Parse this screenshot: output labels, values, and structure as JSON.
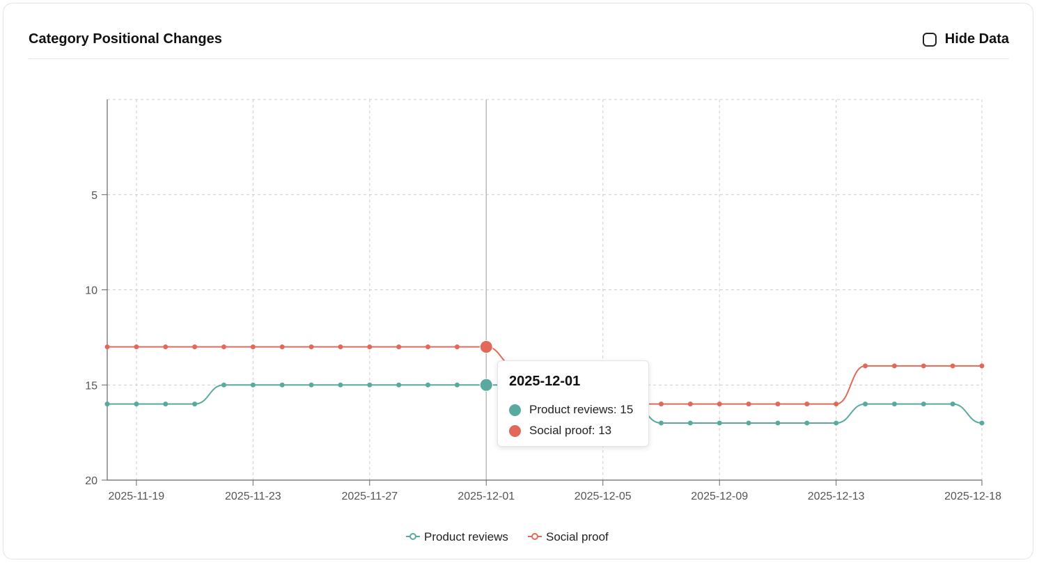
{
  "card": {
    "title": "Category Positional Changes",
    "hide_label": "Hide Data",
    "hide_checked": false
  },
  "colors": {
    "product_reviews": "#5aa99e",
    "social_proof": "#e2695a",
    "grid": "#cccccc",
    "axis": "#666666"
  },
  "tooltip": {
    "date": "2025-12-01",
    "rows": [
      {
        "text": "Product reviews: 15",
        "series": "product_reviews"
      },
      {
        "text": "Social proof: 13",
        "series": "social_proof"
      }
    ]
  },
  "chart_data": {
    "type": "line",
    "title": "",
    "xlabel": "",
    "ylabel": "",
    "y_inverted": true,
    "ylim": [
      0,
      20
    ],
    "yticks": [
      5,
      10,
      15,
      20
    ],
    "x": [
      "2025-11-18",
      "2025-11-19",
      "2025-11-20",
      "2025-11-21",
      "2025-11-22",
      "2025-11-23",
      "2025-11-24",
      "2025-11-25",
      "2025-11-26",
      "2025-11-27",
      "2025-11-28",
      "2025-11-29",
      "2025-11-30",
      "2025-12-01",
      "2025-12-02",
      "2025-12-03",
      "2025-12-04",
      "2025-12-05",
      "2025-12-06",
      "2025-12-07",
      "2025-12-08",
      "2025-12-09",
      "2025-12-10",
      "2025-12-11",
      "2025-12-12",
      "2025-12-13",
      "2025-12-14",
      "2025-12-15",
      "2025-12-16",
      "2025-12-17",
      "2025-12-18"
    ],
    "xtick_labels": [
      "2025-11-19",
      "2025-11-23",
      "2025-11-27",
      "2025-12-01",
      "2025-12-05",
      "2025-12-09",
      "2025-12-13",
      "2025-12-18"
    ],
    "grid": true,
    "legend_position": "bottom-center",
    "series": [
      {
        "key": "product_reviews",
        "name": "Product reviews",
        "values": [
          16,
          16,
          16,
          16,
          15,
          15,
          15,
          15,
          15,
          15,
          15,
          15,
          15,
          15,
          15,
          16,
          16,
          16,
          16,
          17,
          17,
          17,
          17,
          17,
          17,
          17,
          16,
          16,
          16,
          16,
          17
        ]
      },
      {
        "key": "social_proof",
        "name": "Social proof",
        "values": [
          13,
          13,
          13,
          13,
          13,
          13,
          13,
          13,
          13,
          13,
          13,
          13,
          13,
          13,
          14,
          15,
          16,
          16,
          16,
          16,
          16,
          16,
          16,
          16,
          16,
          16,
          14,
          14,
          14,
          14,
          14
        ]
      }
    ],
    "highlight_x": "2025-12-01"
  }
}
